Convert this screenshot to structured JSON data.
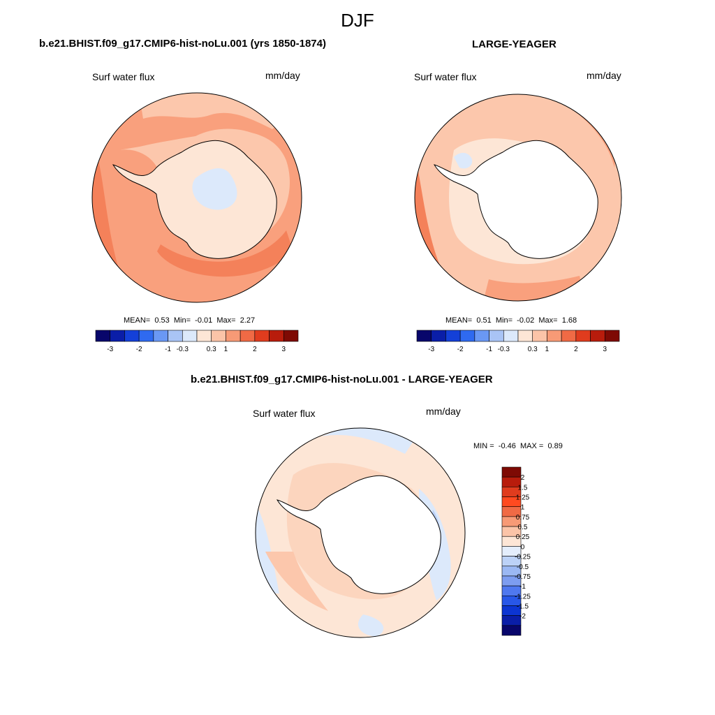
{
  "figure": {
    "season": "DJF"
  },
  "panels": [
    {
      "title": "b.e21.BHIST.f09_g17.CMIP6-hist-noLu.001 (yrs 1850-1874)",
      "variable": "Surf water flux",
      "units": "mm/day",
      "stats": {
        "mean_label": "MEAN=",
        "mean": "0.53",
        "min_label": "Min=",
        "min": "-0.01",
        "max_label": "Max=",
        "max": "2.27"
      }
    },
    {
      "title": "LARGE-YEAGER",
      "variable": "Surf water flux",
      "units": "mm/day",
      "stats": {
        "mean_label": "MEAN=",
        "mean": "0.51",
        "min_label": "Min=",
        "min": "-0.02",
        "max_label": "Max=",
        "max": "1.68"
      }
    },
    {
      "title": "b.e21.BHIST.f09_g17.CMIP6-hist-noLu.001 - LARGE-YEAGER",
      "variable": "Surf water flux",
      "units": "mm/day",
      "stats": {
        "min_label": "MIN =",
        "min": "-0.46",
        "max_label": "MAX =",
        "max": "0.89"
      }
    }
  ],
  "colorbar_abs": {
    "orientation": "horizontal",
    "colors": [
      "#08066b",
      "#0a1ea8",
      "#1440d8",
      "#2f6af0",
      "#6a98f4",
      "#a9c4f5",
      "#dce9fb",
      "#fde6d6",
      "#fbc4a8",
      "#f79a76",
      "#f06a45",
      "#e03c1e",
      "#b81c0c",
      "#7e0a04"
    ],
    "labels": [
      "-3",
      "-2",
      "-1",
      "-0.3",
      "0.3",
      "1",
      "2",
      "3"
    ]
  },
  "colorbar_diff": {
    "orientation": "vertical",
    "colors": [
      "#7e0a04",
      "#b81c0c",
      "#e03c1e",
      "#ff4a20",
      "#f06a45",
      "#f79a76",
      "#fbc4a8",
      "#fde6d6",
      "#e4eefc",
      "#bcd2f7",
      "#9bb8f3",
      "#7d9df0",
      "#4f78ef",
      "#2857e8",
      "#0c35d2",
      "#0a1ea8",
      "#08066b"
    ],
    "labels": [
      "2",
      "1.5",
      "1.25",
      "1",
      "0.75",
      "0.5",
      "0.25",
      "0",
      "-0.25",
      "-0.5",
      "-0.75",
      "-1",
      "-1.25",
      "-1.5",
      "-2"
    ]
  },
  "map_palette": {
    "ocean_strong": "#f4815a",
    "ocean_mid": "#f9a07d",
    "ocean_light": "#fcc7ac",
    "ocean_pale": "#fde6d6",
    "neg_light": "#dce9fb",
    "neg_mid": "#b9cff6",
    "land_outline": "#000000"
  }
}
